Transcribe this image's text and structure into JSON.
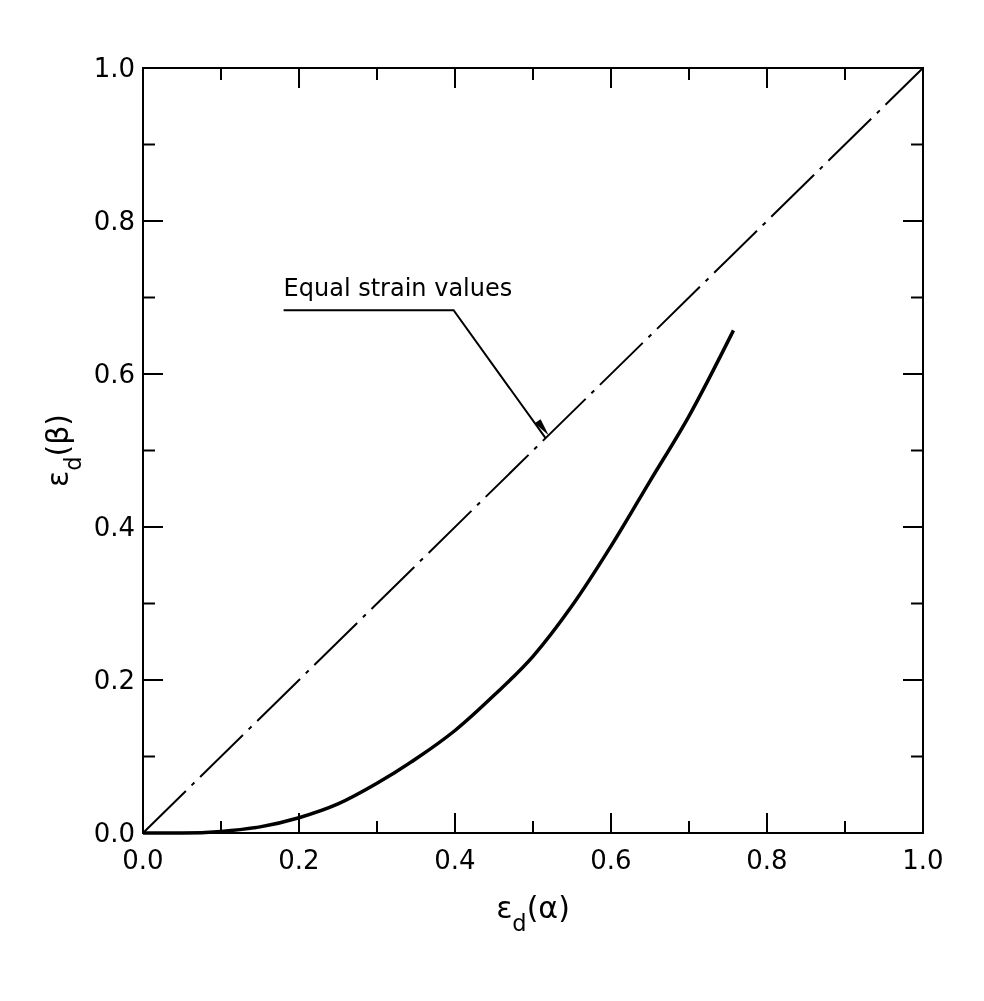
{
  "chart_data": {
    "type": "line",
    "xlabel": "ε$_{d}$(α)",
    "ylabel": "ε$_{d}$(β)",
    "xlim": [
      0,
      1
    ],
    "ylim": [
      0,
      1
    ],
    "xticks": [
      {
        "value": 0,
        "label": "0.0"
      },
      {
        "value": 0.1,
        "label": null
      },
      0.2,
      {
        "value": 0.3,
        "label": null
      },
      0.4,
      {
        "value": 0.5,
        "label": null
      },
      0.6,
      {
        "value": 0.7,
        "label": null
      },
      0.8,
      {
        "value": 0.9,
        "label": null
      },
      {
        "value": 1,
        "label": "1.0"
      }
    ],
    "yticks": [
      {
        "value": 0,
        "label": "0.0"
      },
      {
        "value": 0.1,
        "label": null
      },
      0.2,
      {
        "value": 0.3,
        "label": null
      },
      0.4,
      {
        "value": 0.5,
        "label": null
      },
      0.6,
      {
        "value": 0.7,
        "label": null
      },
      0.8,
      {
        "value": 0.9,
        "label": null
      },
      {
        "value": 1,
        "label": "1.0"
      }
    ],
    "grid": false,
    "series": [
      {
        "color": "#000000",
        "line_style": "dashed",
        "x": [
          0,
          1
        ],
        "values": [
          0,
          1
        ]
      },
      {
        "color": "#000000",
        "line_style": "solid",
        "x": [
          0,
          0.05,
          0.1,
          0.15,
          0.2,
          0.25,
          0.3,
          0.35,
          0.4,
          0.45,
          0.5,
          0.55,
          0.6,
          0.65,
          0.7,
          0.757
        ],
        "values": [
          0,
          0,
          0.002,
          0.008,
          0.02,
          0.038,
          0.065,
          0.097,
          0.134,
          0.18,
          0.231,
          0.297,
          0.375,
          0.46,
          0.545,
          0.657
        ]
      }
    ],
    "annotations": [
      {
        "text": "Equal strain values",
        "x": 0.52,
        "y": 0.52
      }
    ]
  }
}
